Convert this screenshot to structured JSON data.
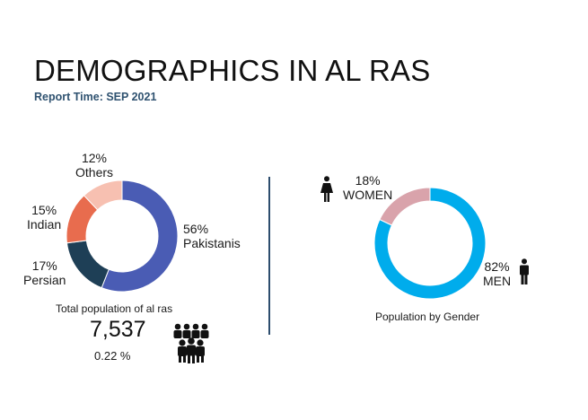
{
  "header": {
    "title": "DEMOGRAPHICS IN AL RAS",
    "subtitle": "Report Time: SEP 2021"
  },
  "summary": {
    "total_label": "Total population of al ras",
    "total_value": "7,537",
    "total_percent": "0.22 %",
    "gender_caption": "Population by Gender"
  },
  "colors": {
    "pakistanis": "#4a5cb4",
    "persian": "#1e3f56",
    "indian": "#e86c4e",
    "others": "#f7c0b1",
    "men": "#00acec",
    "women": "#d9a3ab",
    "divider": "#2d4d6e",
    "subtitle": "#2f5270"
  },
  "icons": {
    "population": "people-group-icon",
    "women": "woman-icon",
    "men": "man-icon"
  },
  "chart_data": [
    {
      "type": "pie",
      "donut": true,
      "categories": [
        "Pakistanis",
        "Persian",
        "Indian",
        "Others"
      ],
      "values": [
        56,
        17,
        15,
        12
      ],
      "labels": [
        "56%",
        "17%",
        "15%",
        "12%"
      ]
    },
    {
      "type": "pie",
      "donut": true,
      "categories": [
        "MEN",
        "WOMEN"
      ],
      "values": [
        82,
        18
      ],
      "labels": [
        "82%",
        "18%"
      ]
    }
  ]
}
